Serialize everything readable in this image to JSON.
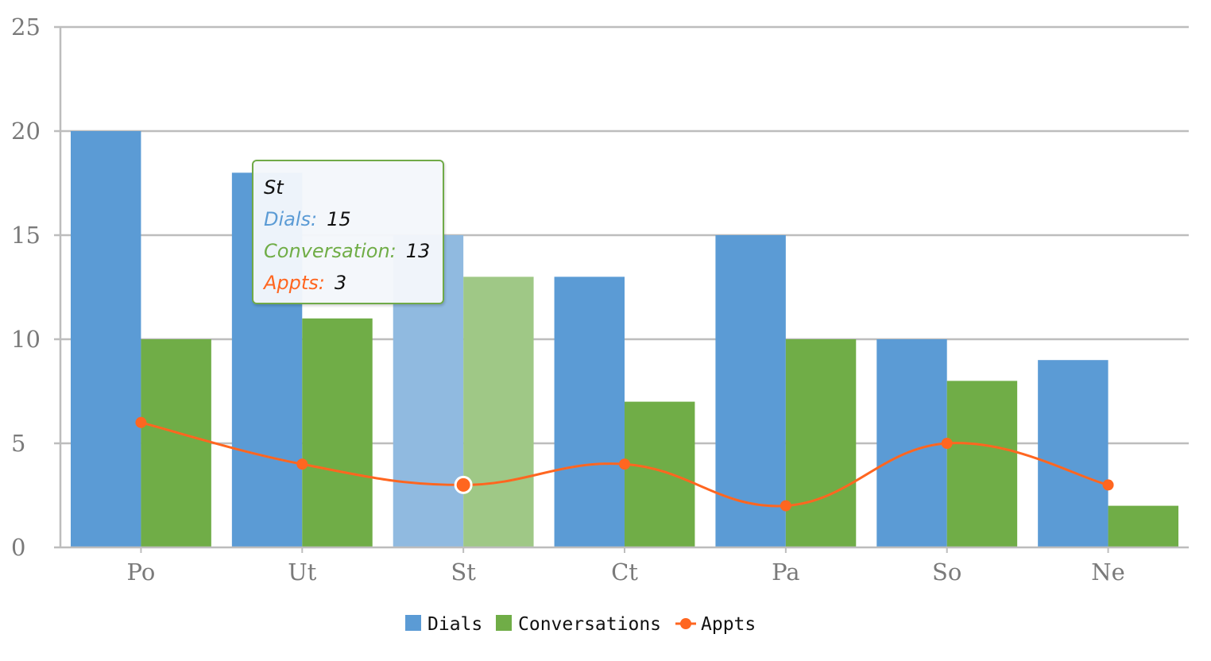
{
  "chart_data": {
    "type": "bar",
    "categories": [
      "Po",
      "Ut",
      "St",
      "Ct",
      "Pa",
      "So",
      "Ne"
    ],
    "series": [
      {
        "name": "Dials",
        "type": "bar",
        "color": "#5b9bd5",
        "values": [
          20,
          18,
          15,
          13,
          15,
          10,
          9
        ]
      },
      {
        "name": "Conversations",
        "type": "bar",
        "color": "#70ad47",
        "values": [
          10,
          11,
          13,
          7,
          10,
          8,
          2
        ]
      },
      {
        "name": "Appts",
        "type": "line",
        "color": "#ff6620",
        "values": [
          6,
          4,
          3,
          4,
          2,
          5,
          3
        ]
      }
    ],
    "ylim": [
      0,
      25
    ],
    "yticks": [
      0,
      5,
      10,
      15,
      20,
      25
    ],
    "grid": true,
    "legend": "bottom-center",
    "highlighted_category": "St",
    "tooltip": {
      "title": "St",
      "rows": [
        {
          "label": "Dials:",
          "value": "15",
          "color": "#5b9bd5"
        },
        {
          "label": "Conversation:",
          "value": "13",
          "color": "#70ad47"
        },
        {
          "label": "Appts:",
          "value": "3",
          "color": "#ff6620"
        }
      ]
    }
  }
}
